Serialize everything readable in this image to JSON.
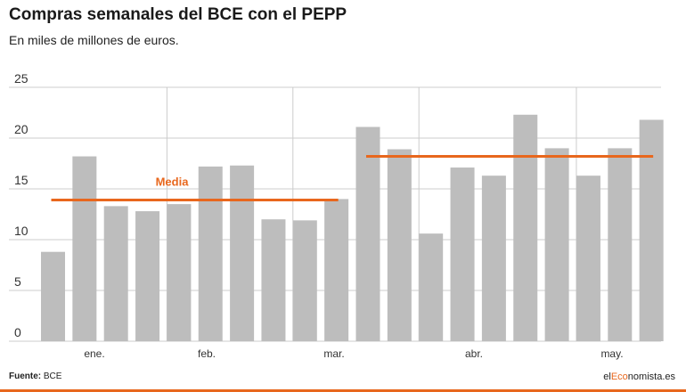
{
  "header": {
    "title": "Compras semanales del BCE con el PEPP",
    "subtitle": "En miles de millones de euros."
  },
  "footer": {
    "source_label": "Fuente:",
    "source_value": "BCE",
    "brand_prefix": "el",
    "brand_accent": "Eco",
    "brand_suffix": "nomista.es"
  },
  "colors": {
    "bar": "#bdbdbd",
    "mean_line": "#e8671d",
    "accent": "#e8671d",
    "gridline": "#cccccc"
  },
  "chart_data": {
    "type": "bar",
    "title": "Compras semanales del BCE con el PEPP",
    "subtitle": "En miles de millones de euros.",
    "ylim": [
      0,
      25
    ],
    "yticks": [
      "0",
      "5",
      "10",
      "15",
      "20",
      "25"
    ],
    "grid": "horizontal and monthly vertical",
    "month_labels": [
      "ene.",
      "feb.",
      "mar.",
      "abr.",
      "may."
    ],
    "series": [
      {
        "values": [
          8.8,
          18.2,
          13.3,
          12.8,
          13.5,
          17.2,
          17.3,
          12.0,
          11.9,
          14.0,
          21.1,
          18.9,
          10.6,
          17.1,
          16.3,
          22.3,
          19.0,
          16.3,
          19.0,
          21.8
        ]
      }
    ],
    "means": [
      {
        "label": "Media",
        "value": 13.9,
        "from_bar": 0,
        "to_bar": 9
      },
      {
        "label": "",
        "value": 18.2,
        "from_bar": 10,
        "to_bar": 19
      }
    ]
  }
}
